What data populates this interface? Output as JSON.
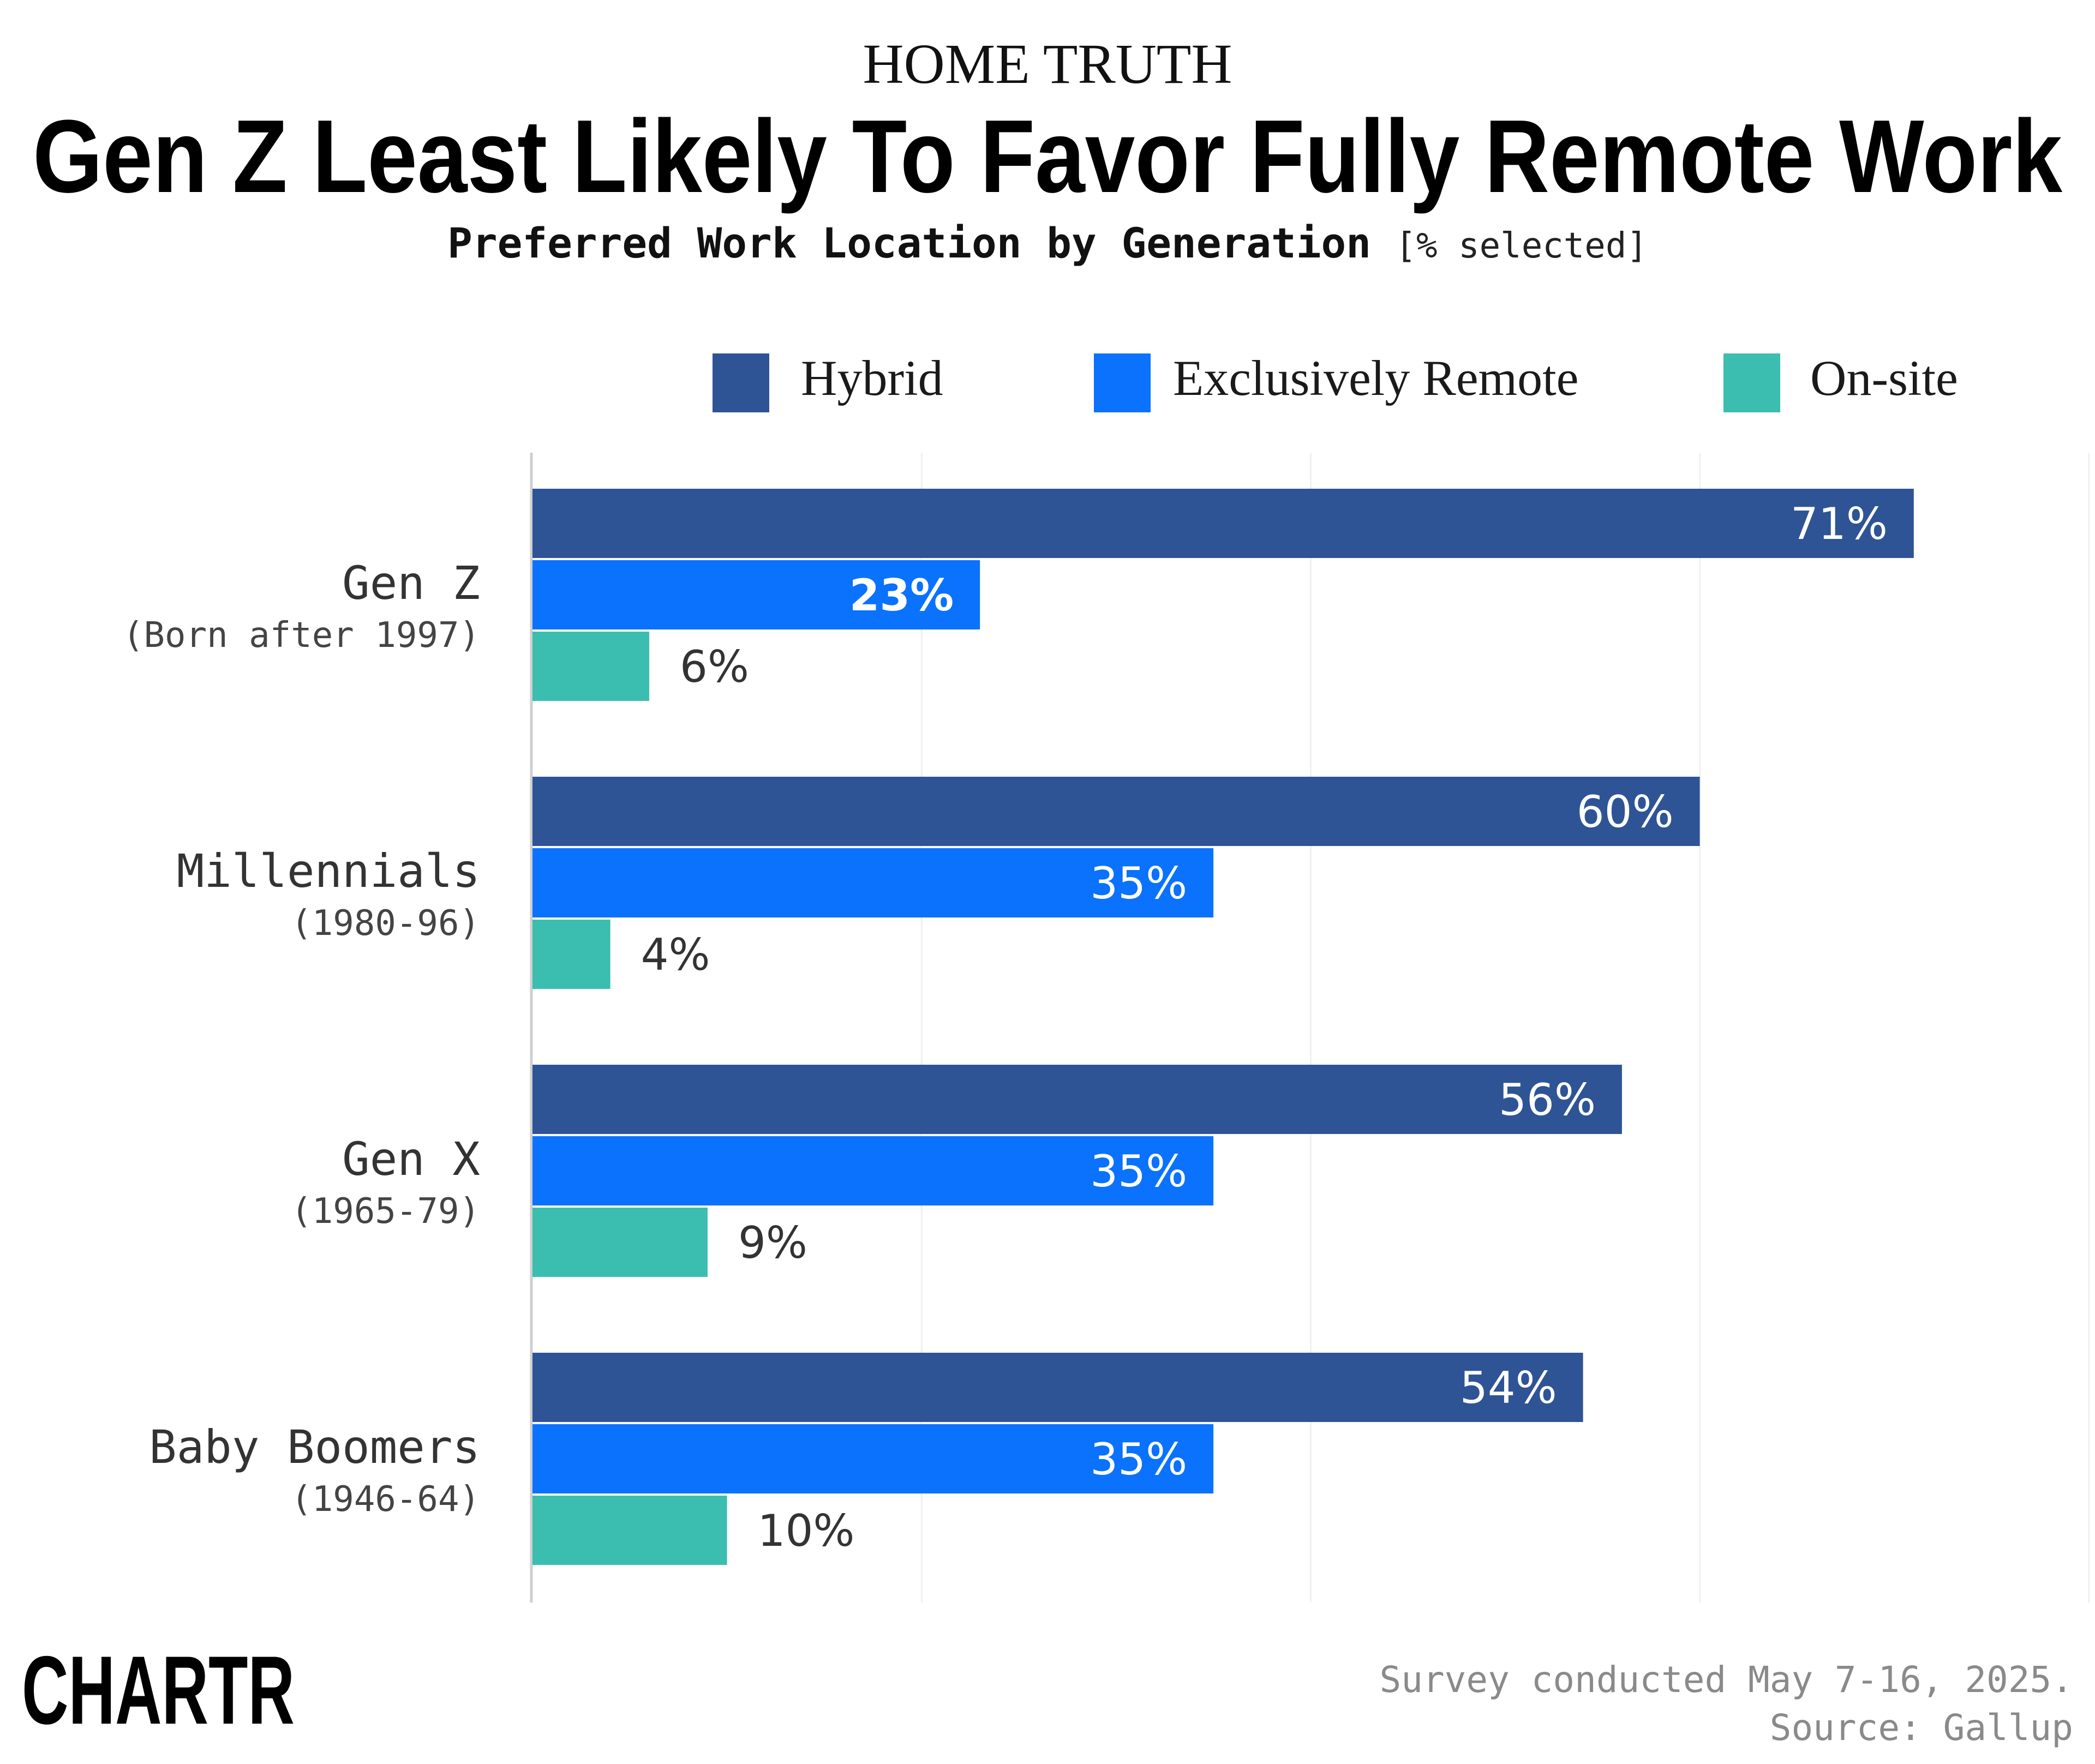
{
  "header": {
    "kicker": "HOME TRUTH",
    "title": "Gen Z Least Likely To Favor Fully Remote Work",
    "subtitle": "Preferred Work Location by Generation",
    "subtitle_unit": "[% selected]"
  },
  "chart_data": {
    "type": "bar",
    "orientation": "horizontal",
    "title": "Gen Z Least Likely To Favor Fully Remote Work",
    "subtitle": "Preferred Work Location by Generation [% selected]",
    "categories": [
      {
        "label": "Gen Z",
        "sub": "(Born after 1997)"
      },
      {
        "label": "Millennials",
        "sub": "(1980-96)"
      },
      {
        "label": "Gen X",
        "sub": "(1965-79)"
      },
      {
        "label": "Baby Boomers",
        "sub": "(1946-64)"
      }
    ],
    "series": [
      {
        "name": "Hybrid",
        "color": "#2e5496",
        "values": [
          71,
          60,
          56,
          54
        ],
        "labels": [
          "71%",
          "60%",
          "56%",
          "54%"
        ]
      },
      {
        "name": "Exclusively Remote",
        "color": "#0a72fc",
        "values": [
          23,
          35,
          35,
          35
        ],
        "labels": [
          "23%",
          "35%",
          "35%",
          "35%"
        ]
      },
      {
        "name": "On-site",
        "color": "#3bbdaf",
        "values": [
          6,
          4,
          9,
          10
        ],
        "labels": [
          "6%",
          "4%",
          "9%",
          "10%"
        ]
      }
    ],
    "xlim": [
      0,
      80
    ],
    "grid": true,
    "legend": "top-right"
  },
  "footer": {
    "logo": "CHARTR",
    "note_line1": "Survey conducted May 7-16, 2025.",
    "note_line2": "Source: Gallup"
  }
}
